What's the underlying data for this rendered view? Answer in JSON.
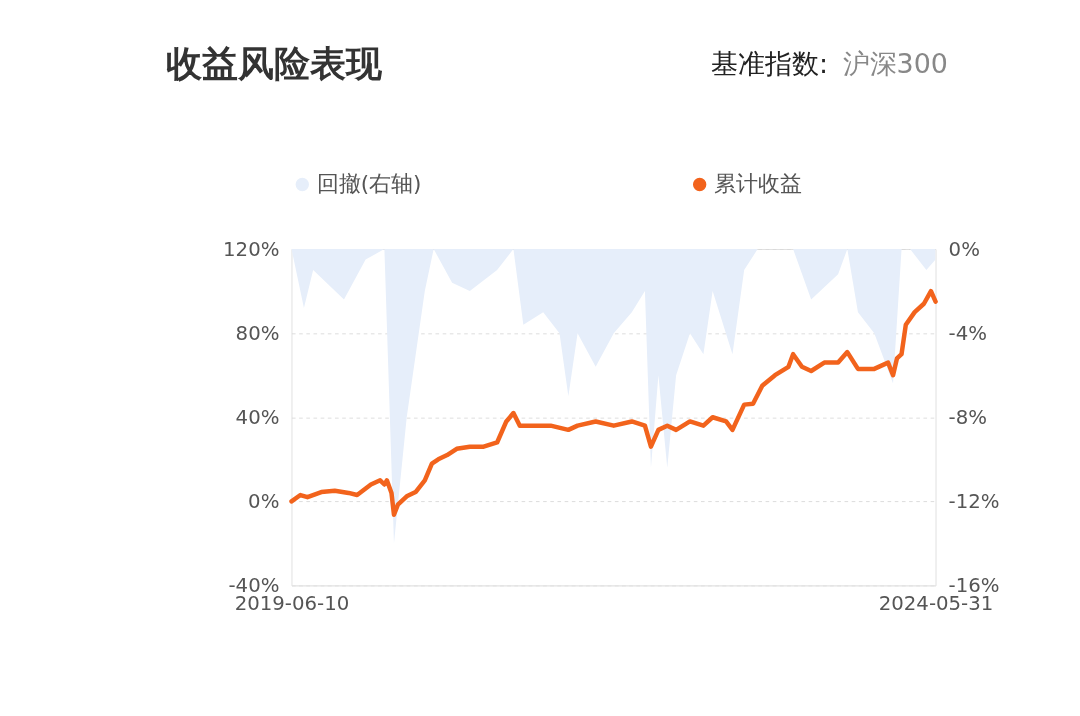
{
  "chart_data": {
    "type": "line",
    "title": "收益风险表现",
    "annotations": [
      "基准指数:",
      "沪深300"
    ],
    "xlim": [
      "2019-06-10",
      "2024-05-31"
    ],
    "xticks": [
      "2019-06-10",
      "2024-05-31"
    ],
    "ylim": [
      -40,
      120
    ],
    "yticks": [
      {
        "value": -40,
        "label": "-40%"
      },
      {
        "value": 0,
        "label": "0%"
      },
      {
        "value": 40,
        "label": "40%"
      },
      {
        "value": 80,
        "label": "80%"
      },
      {
        "value": 120,
        "label": "120%"
      }
    ],
    "y2lim": [
      -16,
      0
    ],
    "y2ticks": [
      {
        "value": -16,
        "label": "-16%"
      },
      {
        "value": -12,
        "label": "-12%"
      },
      {
        "value": -8,
        "label": "-8%"
      },
      {
        "value": -4,
        "label": "-4%"
      },
      {
        "value": 0,
        "label": "0%"
      }
    ],
    "grid": "y",
    "legend": "top",
    "marker": "none",
    "line_style": "solid",
    "series": [
      {
        "name": "回撤(右轴)",
        "type": "area",
        "axis": "y2",
        "color": "#e6eefa",
        "x": [
          "2019-06-10",
          "2019-07-15",
          "2019-08-10",
          "2019-11-05",
          "2020-01-05",
          "2020-02-27",
          "2020-03-25",
          "2020-04-30",
          "2020-06-20",
          "2020-07-15",
          "2020-09-05",
          "2020-10-25",
          "2021-01-10",
          "2021-02-25",
          "2021-03-25",
          "2021-05-20",
          "2021-07-05",
          "2021-07-30",
          "2021-08-25",
          "2021-10-15",
          "2021-12-05",
          "2022-01-25",
          "2022-03-03",
          "2022-03-20",
          "2022-04-10",
          "2022-05-05",
          "2022-05-30",
          "2022-07-08",
          "2022-08-15",
          "2022-09-10",
          "2022-11-05",
          "2022-12-08",
          "2023-01-15",
          "2023-04-25",
          "2023-06-15",
          "2023-08-30",
          "2023-09-25",
          "2023-10-25",
          "2023-12-10",
          "2024-02-01",
          "2024-02-25",
          "2024-03-20",
          "2024-05-05",
          "2024-05-31"
        ],
        "values": [
          0,
          -2.8,
          -1,
          -2.4,
          -0.5,
          0,
          -14,
          -8,
          -2,
          0,
          -1.6,
          -2,
          -1,
          0,
          -3.6,
          -3,
          -4,
          -7,
          -4,
          -5.6,
          -4,
          -3,
          -2,
          -10.4,
          -6,
          -10.4,
          -6,
          -4,
          -5,
          -2,
          -5,
          -1,
          0,
          0,
          -2.4,
          -1.2,
          0,
          -3,
          -4,
          -6.4,
          0,
          0,
          -1,
          -0.5
        ]
      },
      {
        "name": "累计收益",
        "axis": "y",
        "color": "#f2631c",
        "x": [
          "2019-06-10",
          "2019-07-05",
          "2019-07-25",
          "2019-09-02",
          "2019-10-10",
          "2019-11-18",
          "2019-12-12",
          "2020-01-20",
          "2020-02-15",
          "2020-02-27",
          "2020-03-05",
          "2020-03-18",
          "2020-03-25",
          "2020-04-05",
          "2020-04-30",
          "2020-05-25",
          "2020-06-20",
          "2020-07-10",
          "2020-07-28",
          "2020-08-22",
          "2020-09-18",
          "2020-10-25",
          "2020-12-03",
          "2021-01-10",
          "2021-02-05",
          "2021-02-25",
          "2021-03-15",
          "2021-04-20",
          "2021-06-10",
          "2021-07-30",
          "2021-08-25",
          "2021-10-15",
          "2021-12-05",
          "2022-01-25",
          "2022-03-03",
          "2022-03-20",
          "2022-04-10",
          "2022-05-05",
          "2022-05-30",
          "2022-07-08",
          "2022-08-15",
          "2022-09-10",
          "2022-10-18",
          "2022-11-05",
          "2022-12-08",
          "2023-01-02",
          "2023-01-28",
          "2023-03-05",
          "2023-04-12",
          "2023-04-25",
          "2023-05-20",
          "2023-06-15",
          "2023-07-22",
          "2023-08-30",
          "2023-09-25",
          "2023-10-25",
          "2023-12-10",
          "2024-01-18",
          "2024-02-01",
          "2024-02-12",
          "2024-02-25",
          "2024-03-08",
          "2024-04-02",
          "2024-04-28",
          "2024-05-18",
          "2024-05-31"
        ],
        "values": [
          0,
          3,
          2,
          4.4,
          5,
          4,
          3,
          8,
          10,
          8,
          10,
          4,
          -6.4,
          -1.6,
          2.4,
          4.4,
          10,
          18,
          20,
          22,
          25,
          26,
          26,
          28,
          38,
          42,
          36,
          36,
          36,
          34,
          36,
          38,
          36,
          38,
          36,
          26,
          34,
          36,
          34,
          38,
          36,
          40,
          38,
          34,
          46,
          46.4,
          55,
          60,
          64,
          70,
          64,
          62,
          66,
          66,
          71,
          63,
          63,
          66,
          60,
          68,
          70,
          84,
          90,
          94,
          100,
          95
        ]
      }
    ]
  }
}
